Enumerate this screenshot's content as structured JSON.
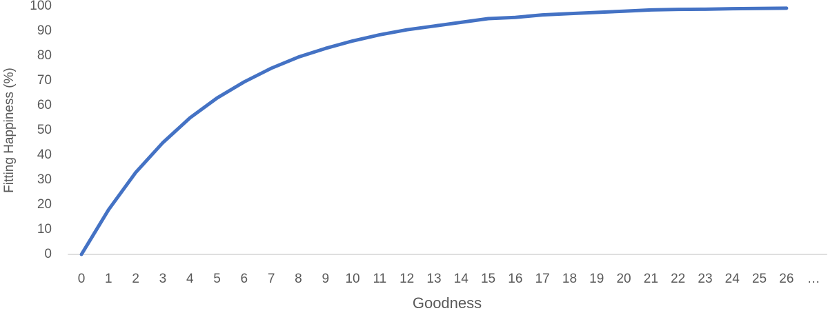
{
  "chart_data": {
    "type": "line",
    "x_label": "Goodness",
    "y_label": "Fitting Happiness (%)",
    "categories": [
      "0",
      "1",
      "2",
      "3",
      "4",
      "5",
      "6",
      "7",
      "8",
      "9",
      "10",
      "11",
      "12",
      "13",
      "14",
      "15",
      "16",
      "17",
      "18",
      "19",
      "20",
      "21",
      "22",
      "23",
      "24",
      "25",
      "26",
      "…"
    ],
    "series": [
      {
        "name": "Fitting Happiness",
        "color": "#4472c4",
        "values": [
          0,
          18,
          33,
          45,
          55,
          63,
          69.5,
          75,
          79.5,
          83,
          86,
          88.5,
          90.5,
          92,
          93.5,
          95,
          95.5,
          96.5,
          97,
          97.5,
          98,
          98.5,
          98.7,
          98.8,
          99,
          99.1,
          99.2,
          null
        ]
      }
    ],
    "ylim": [
      0,
      100
    ],
    "yticks": [
      0,
      10,
      20,
      30,
      40,
      50,
      60,
      70,
      80,
      90,
      100
    ],
    "grid": false
  }
}
